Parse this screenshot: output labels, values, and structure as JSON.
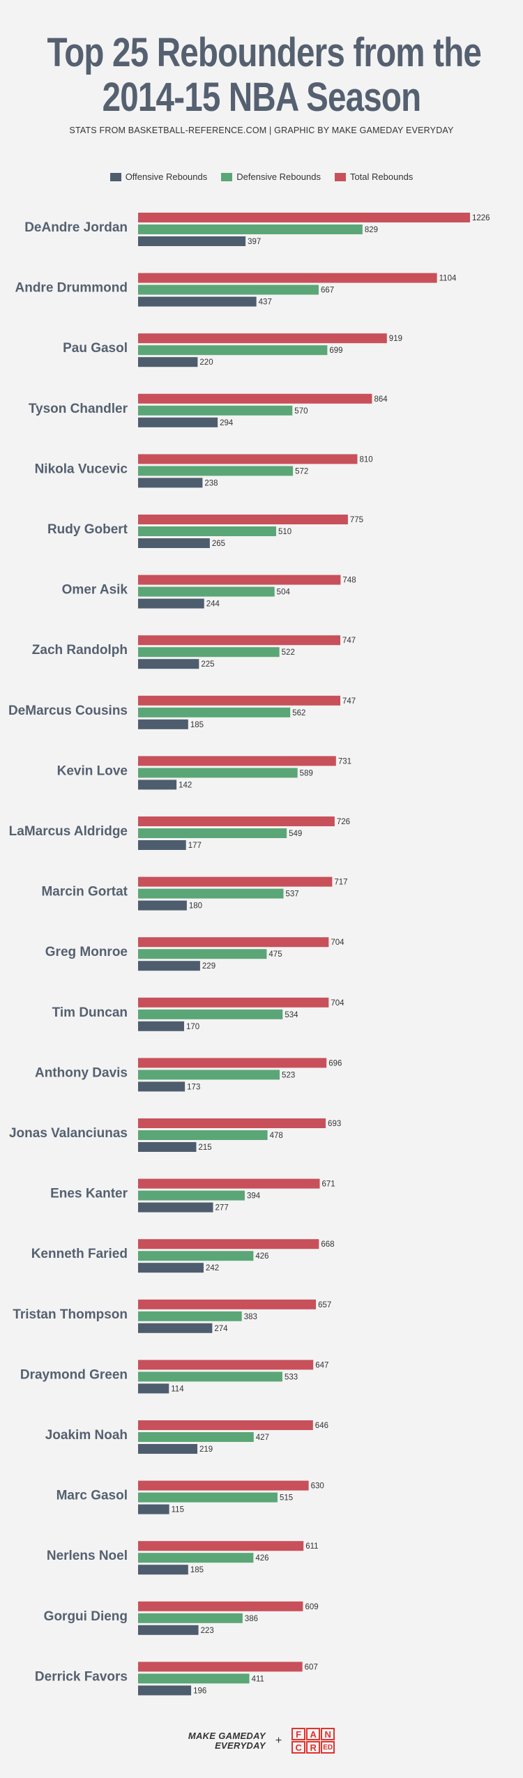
{
  "title_line1": "Top 25 Rebounders from the",
  "title_line2": "2014-15 NBA Season",
  "subtitle": "STATS FROM BASKETBALL-REFERENCE.COM  |  GRAPHIC BY MAKE GAMEDAY EVERYDAY",
  "legend": [
    {
      "label": "Offensive Rebounds",
      "color": "#4e5d6e"
    },
    {
      "label": "Defensive Rebounds",
      "color": "#5ba676"
    },
    {
      "label": "Total Rebounds",
      "color": "#c8505a"
    }
  ],
  "footer": {
    "brand_line1": "MAKE GAMEDAY",
    "brand_line2": "EVERYDAY",
    "plus": "+",
    "logo_letters": [
      "F",
      "A",
      "N",
      "C",
      "R",
      "E",
      "D"
    ]
  },
  "chart_data": {
    "type": "bar",
    "orientation": "horizontal",
    "categories": [
      "DeAndre Jordan",
      "Andre Drummond",
      "Pau Gasol",
      "Tyson Chandler",
      "Nikola Vucevic",
      "Rudy Gobert",
      "Omer Asik",
      "Zach Randolph",
      "DeMarcus Cousins",
      "Kevin Love",
      "LaMarcus Aldridge",
      "Marcin Gortat",
      "Greg Monroe",
      "Tim Duncan",
      "Anthony Davis",
      "Jonas Valanciunas",
      "Enes Kanter",
      "Kenneth Faried",
      "Tristan Thompson",
      "Draymond Green",
      "Joakim Noah",
      "Marc Gasol",
      "Nerlens Noel",
      "Gorgui Dieng",
      "Derrick Favors"
    ],
    "series": [
      {
        "name": "Total Rebounds",
        "color": "#c8505a",
        "values": [
          1226,
          1104,
          919,
          864,
          810,
          775,
          748,
          747,
          747,
          731,
          726,
          717,
          704,
          704,
          696,
          693,
          671,
          668,
          657,
          647,
          646,
          630,
          611,
          609,
          607
        ]
      },
      {
        "name": "Defensive Rebounds",
        "color": "#5ba676",
        "values": [
          829,
          667,
          699,
          570,
          572,
          510,
          504,
          522,
          562,
          589,
          549,
          537,
          475,
          534,
          523,
          478,
          394,
          426,
          383,
          533,
          427,
          515,
          426,
          386,
          411
        ]
      },
      {
        "name": "Offensive Rebounds",
        "color": "#4e5d6e",
        "values": [
          397,
          437,
          220,
          294,
          238,
          265,
          244,
          225,
          185,
          142,
          177,
          180,
          229,
          170,
          173,
          215,
          277,
          242,
          274,
          114,
          219,
          115,
          185,
          223,
          196
        ]
      }
    ],
    "title": "Top 25 Rebounders from the 2014-15 NBA Season",
    "legend_position": "top-center",
    "grid": false
  }
}
